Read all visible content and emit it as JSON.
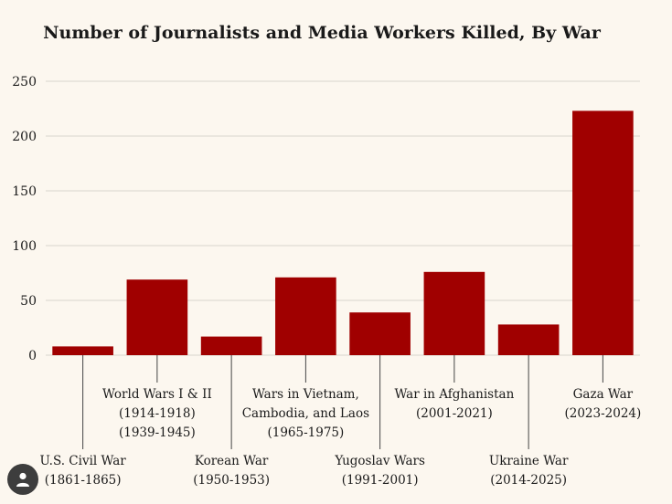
{
  "chart_data": {
    "type": "bar",
    "title": "Number of Journalists and Media Workers Killed, By War",
    "xlabel": "",
    "ylabel": "",
    "ylim": [
      0,
      250
    ],
    "yticks": [
      0,
      50,
      100,
      150,
      200,
      250
    ],
    "grid": true,
    "categories": [
      [
        "U.S. Civil War",
        "(1861-1865)"
      ],
      [
        "World Wars I & II",
        "(1914-1918)",
        "(1939-1945)"
      ],
      [
        "Korean War",
        "(1950-1953)"
      ],
      [
        "Wars in Vietnam,",
        "Cambodia, and Laos",
        "(1965-1975)"
      ],
      [
        "Yugoslav Wars",
        "(1991-2001)"
      ],
      [
        "War in Afghanistan",
        "(2001-2021)"
      ],
      [
        "Ukraine War",
        "(2014-2025)"
      ],
      [
        "Gaza War",
        "(2023-2024)"
      ]
    ],
    "label_position": [
      "low",
      "high",
      "low",
      "high",
      "low",
      "high",
      "low",
      "high"
    ],
    "values": [
      8,
      69,
      17,
      71,
      39,
      76,
      28,
      223
    ],
    "colors": {
      "bar": "#a00000",
      "grid": "#d9d4cc",
      "text": "#1a1a1a",
      "leader": "#444444",
      "background": "#fcf7ef"
    }
  },
  "avatar": {
    "icon": "user-icon"
  }
}
